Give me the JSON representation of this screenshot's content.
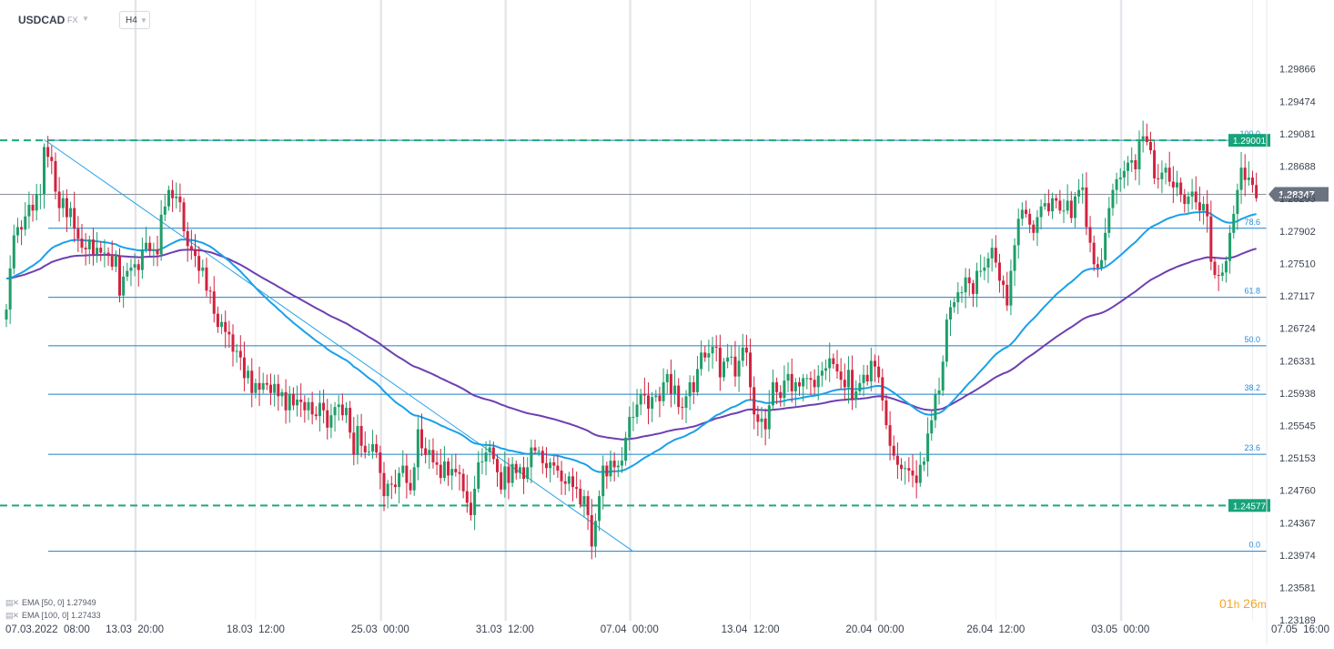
{
  "header": {
    "symbol": "USDCAD",
    "market": "FX",
    "timeframe": "H4"
  },
  "indicators": [
    {
      "label": "EMA [50, 0] 1.27949",
      "color": "#1aa0e8"
    },
    {
      "label": "EMA [100, 0] 1.27433",
      "color": "#6e3fb0"
    }
  ],
  "timer": {
    "hours": "01",
    "h_unit": "h",
    "minutes": "26",
    "m_unit": "m"
  },
  "colors": {
    "bull": "#1e9e6a",
    "bear": "#d0233f",
    "fib": "#1f7fc8",
    "ema50": "#1aa0e8",
    "ema100": "#6e3fb0",
    "level": "#1ea97c",
    "current": "#6b7280"
  },
  "chart_data": {
    "type": "candlestick",
    "ylim": [
      1.2318,
      1.3026
    ],
    "y_ticks": [
      "1.29866",
      "1.29474",
      "1.29081",
      "1.28688",
      "1.28295",
      "1.27902",
      "1.27510",
      "1.27117",
      "1.26724",
      "1.26331",
      "1.25938",
      "1.25545",
      "1.25153",
      "1.24760",
      "1.24367",
      "1.23974",
      "1.23581",
      "1.23189"
    ],
    "x_ticks": [
      "07.03.2022  08:00",
      "13.03  20:00",
      "18.03  12:00",
      "25.03  00:00",
      "31.03  12:00",
      "07.04  00:00",
      "13.04  12:00",
      "20.04  00:00",
      "26.04  12:00",
      "03.05  00:00",
      "07.05  16:00"
    ],
    "x_tick_index": [
      0,
      34,
      66,
      99,
      132,
      165,
      197,
      230,
      262,
      295,
      330
    ],
    "current_price": "1.28347",
    "horizontal_levels": [
      {
        "value": 1.29001,
        "label": "1.29001"
      },
      {
        "value": 1.24577,
        "label": "1.24577"
      }
    ],
    "fibonacci": {
      "start_price": 1.29001,
      "end_price": 1.24022,
      "levels": [
        {
          "label": "100.0",
          "ratio": 1.0
        },
        {
          "label": "78.6",
          "ratio": 0.786
        },
        {
          "label": "61.8",
          "ratio": 0.618
        },
        {
          "label": "50.0",
          "ratio": 0.5
        },
        {
          "label": "38.2",
          "ratio": 0.382
        },
        {
          "label": "23.6",
          "ratio": 0.236
        },
        {
          "label": "0.0",
          "ratio": 0.0
        }
      ]
    },
    "trendline": {
      "start": {
        "index": 10,
        "price": 1.2901
      },
      "end": {
        "index": 166,
        "price": 1.2402
      }
    },
    "closes": [
      1.2695,
      1.2745,
      1.2785,
      1.2795,
      1.2792,
      1.2808,
      1.2822,
      1.2815,
      1.2835,
      1.2835,
      1.2892,
      1.288,
      1.2875,
      1.2838,
      1.2818,
      1.283,
      1.2807,
      1.2818,
      1.2793,
      1.2781,
      1.277,
      1.2768,
      1.278,
      1.2762,
      1.277,
      1.2764,
      1.2764,
      1.276,
      1.2747,
      1.276,
      1.2712,
      1.2735,
      1.2742,
      1.2746,
      1.275,
      1.2743,
      1.2768,
      1.2776,
      1.2766,
      1.2768,
      1.2762,
      1.281,
      1.282,
      1.284,
      1.283,
      1.2832,
      1.2825,
      1.279,
      1.2772,
      1.2768,
      1.276,
      1.2742,
      1.2746,
      1.2718,
      1.2717,
      1.269,
      1.2674,
      1.268,
      1.2668,
      1.2665,
      1.2644,
      1.2645,
      1.2637,
      1.2612,
      1.2621,
      1.2594,
      1.2606,
      1.2598,
      1.2606,
      1.2604,
      1.2594,
      1.2605,
      1.259,
      1.2595,
      1.2573,
      1.2593,
      1.2579,
      1.2586,
      1.2583,
      1.2573,
      1.2583,
      1.2568,
      1.2566,
      1.2582,
      1.2573,
      1.2552,
      1.2567,
      1.2577,
      1.258,
      1.2567,
      1.2576,
      1.2546,
      1.2519,
      1.2554,
      1.253,
      1.2522,
      1.2523,
      1.2532,
      1.2522,
      1.2497,
      1.2469,
      1.2484,
      1.2483,
      1.248,
      1.2497,
      1.2506,
      1.2485,
      1.2476,
      1.2504,
      1.255,
      1.2527,
      1.2519,
      1.2525,
      1.251,
      1.2507,
      1.2491,
      1.2511,
      1.2494,
      1.2502,
      1.2498,
      1.2496,
      1.2475,
      1.2461,
      1.2446,
      1.2478,
      1.251,
      1.2511,
      1.2522,
      1.2528,
      1.2514,
      1.2498,
      1.2477,
      1.2505,
      1.2485,
      1.2508,
      1.2497,
      1.2504,
      1.249,
      1.2504,
      1.2528,
      1.2524,
      1.2524,
      1.2509,
      1.2503,
      1.251,
      1.2506,
      1.25,
      1.2487,
      1.2484,
      1.2493,
      1.248,
      1.2478,
      1.2459,
      1.2469,
      1.2446,
      1.2408,
      1.2439,
      1.2469,
      1.2506,
      1.2493,
      1.2512,
      1.2504,
      1.2506,
      1.2512,
      1.254,
      1.2565,
      1.2565,
      1.258,
      1.2593,
      1.2591,
      1.2575,
      1.2589,
      1.2591,
      1.2584,
      1.2607,
      1.2617,
      1.2593,
      1.2603,
      1.2577,
      1.2576,
      1.259,
      1.2607,
      1.2595,
      1.2623,
      1.2643,
      1.2637,
      1.2642,
      1.265,
      1.2649,
      1.2613,
      1.2632,
      1.2637,
      1.2638,
      1.2614,
      1.2633,
      1.2649,
      1.2643,
      1.2601,
      1.2568,
      1.2559,
      1.2563,
      1.255,
      1.2579,
      1.2607,
      1.2595,
      1.2588,
      1.2609,
      1.2617,
      1.2596,
      1.2607,
      1.2602,
      1.2612,
      1.2612,
      1.261,
      1.2601,
      1.2615,
      1.2621,
      1.2624,
      1.2636,
      1.2629,
      1.262,
      1.261,
      1.2601,
      1.2622,
      1.2586,
      1.2596,
      1.2606,
      1.2616,
      1.2608,
      1.2633,
      1.2626,
      1.2613,
      1.2585,
      1.2555,
      1.253,
      1.2518,
      1.2507,
      1.2502,
      1.2503,
      1.25,
      1.2494,
      1.2485,
      1.2507,
      1.2511,
      1.2545,
      1.2561,
      1.2592,
      1.2597,
      1.2632,
      1.2683,
      1.2698,
      1.2704,
      1.2716,
      1.2716,
      1.2734,
      1.2727,
      1.2714,
      1.2742,
      1.2742,
      1.2746,
      1.2757,
      1.277,
      1.2752,
      1.273,
      1.2725,
      1.27,
      1.2742,
      1.2773,
      1.2805,
      1.2816,
      1.2811,
      1.2798,
      1.2788,
      1.2807,
      1.282,
      1.2824,
      1.2814,
      1.283,
      1.2827,
      1.2815,
      1.2815,
      1.2827,
      1.2806,
      1.2832,
      1.284,
      1.2843,
      1.2795,
      1.2776,
      1.275,
      1.2746,
      1.2755,
      1.2788,
      1.2818,
      1.284,
      1.2853,
      1.2855,
      1.2863,
      1.2873,
      1.2876,
      1.2865,
      1.2899,
      1.2905,
      1.2898,
      1.2888,
      1.2854,
      1.2853,
      1.2861,
      1.2867,
      1.285,
      1.2843,
      1.2849,
      1.2834,
      1.2823,
      1.2832,
      1.2838,
      1.2825,
      1.2815,
      1.2823,
      1.2808,
      1.2753,
      1.2737,
      1.2736,
      1.274,
      1.2754,
      1.2788,
      1.2811,
      1.284,
      1.2867,
      1.2852,
      1.2855,
      1.2846,
      1.283
    ]
  }
}
